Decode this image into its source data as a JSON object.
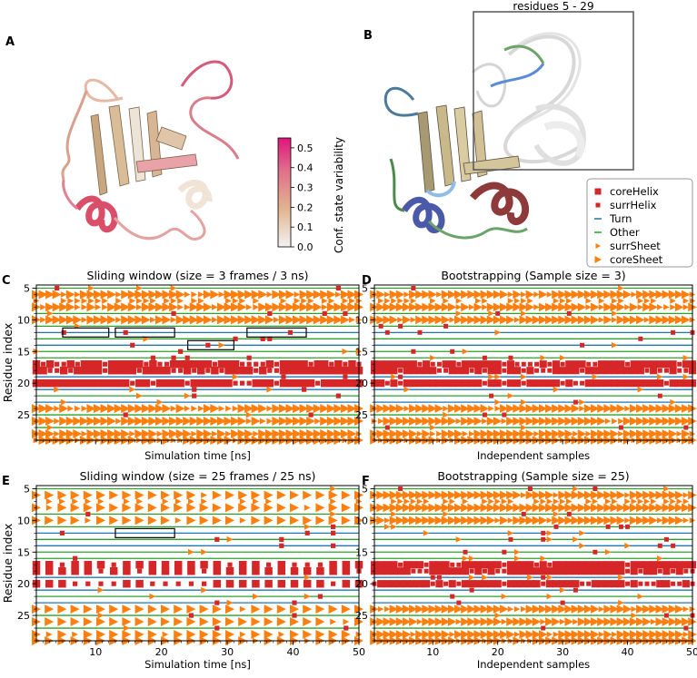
{
  "panel_letters": {
    "a": "A",
    "b": "B",
    "c": "C",
    "d": "D",
    "e": "E",
    "f": "F"
  },
  "colorbar": {
    "label": "Conf. state variability",
    "ticks": [
      "0.0",
      "0.1",
      "0.2",
      "0.3",
      "0.4",
      "0.5"
    ],
    "tick_values": [
      0.0,
      0.1,
      0.2,
      0.3,
      0.4,
      0.5
    ],
    "range": [
      0.0,
      0.55
    ],
    "colors": [
      "#f2f2f2",
      "#e2b48f",
      "#e0708a",
      "#e0157f"
    ]
  },
  "inset_label": "residues 5 - 29",
  "legend": [
    {
      "label": "coreHelix",
      "marker": "square",
      "color": "#d62728"
    },
    {
      "label": "surrHelix",
      "marker": "small-square",
      "color": "#d62728"
    },
    {
      "label": "Turn",
      "marker": "line",
      "color": "#1f77b4"
    },
    {
      "label": "Other",
      "marker": "line",
      "color": "#2ca02c"
    },
    {
      "label": "surrSheet",
      "marker": "small-triangle",
      "color": "#ff7f0e"
    },
    {
      "label": "coreSheet",
      "marker": "triangle",
      "color": "#ff7f0e"
    }
  ],
  "state_colors": {
    "coreHelix": "#d62728",
    "surrHelix": "#d62728",
    "Turn": "#1f77b4",
    "Other": "#2ca02c",
    "surrSheet": "#ff7f0e",
    "coreSheet": "#ff7f0e",
    "box": "#000000"
  },
  "chart_data": [
    {
      "id": "C",
      "type": "scatter",
      "title": "Sliding window (size = 3 frames / 3 ns)",
      "xlabel": "Simulation time [ns]",
      "ylabel": "Residue index",
      "xlim": [
        1,
        50
      ],
      "ylim": [
        29,
        4.5
      ],
      "yticks": [
        5,
        10,
        15,
        20,
        25
      ],
      "xticklabels_shown": false,
      "n_samples": 48,
      "residues": [
        5,
        6,
        7,
        8,
        9,
        10,
        11,
        12,
        13,
        14,
        15,
        16,
        17,
        18,
        19,
        20,
        21,
        22,
        23,
        24,
        25,
        26,
        27,
        28,
        29
      ],
      "boxes": [
        [
          5,
          12,
          12
        ],
        [
          13,
          22,
          12
        ],
        [
          24,
          31,
          14
        ],
        [
          33,
          42,
          12
        ]
      ]
    },
    {
      "id": "D",
      "type": "scatter",
      "title": "Bootstrapping (Sample size = 3)",
      "xlabel": "Independent samples",
      "ylabel": "",
      "xlim": [
        1,
        50
      ],
      "ylim": [
        29,
        4.5
      ],
      "yticks": [
        5,
        10,
        15,
        20,
        25
      ],
      "xticklabels_shown": false,
      "n_samples": 50,
      "residues": [
        5,
        6,
        7,
        8,
        9,
        10,
        11,
        12,
        13,
        14,
        15,
        16,
        17,
        18,
        19,
        20,
        21,
        22,
        23,
        24,
        25,
        26,
        27,
        28,
        29
      ],
      "boxes": []
    },
    {
      "id": "E",
      "type": "scatter",
      "title": "Sliding window (size = 25 frames / 25 ns)",
      "xlabel": "Simulation time [ns]",
      "ylabel": "Residue index",
      "xlim": [
        1,
        50
      ],
      "ylim": [
        29,
        4.5
      ],
      "yticks": [
        5,
        10,
        15,
        20,
        25
      ],
      "xticks": [
        10,
        20,
        30,
        40,
        50
      ],
      "n_samples": 26,
      "residues": [
        5,
        6,
        7,
        8,
        9,
        10,
        11,
        12,
        13,
        14,
        15,
        16,
        17,
        18,
        19,
        20,
        21,
        22,
        23,
        24,
        25,
        26,
        27,
        28,
        29
      ],
      "boxes": [
        [
          13,
          22,
          12
        ]
      ]
    },
    {
      "id": "F",
      "type": "scatter",
      "title": "Bootstrapping (Sample size = 25)",
      "xlabel": "Independent samples",
      "ylabel": "",
      "xlim": [
        1,
        50
      ],
      "ylim": [
        29,
        4.5
      ],
      "yticks": [
        5,
        10,
        15,
        20,
        25
      ],
      "xticks": [
        10,
        20,
        30,
        40,
        50
      ],
      "n_samples": 50,
      "residues": [
        5,
        6,
        7,
        8,
        9,
        10,
        11,
        12,
        13,
        14,
        15,
        16,
        17,
        18,
        19,
        20,
        21,
        22,
        23,
        24,
        25,
        26,
        27,
        28,
        29
      ],
      "boxes": []
    }
  ]
}
